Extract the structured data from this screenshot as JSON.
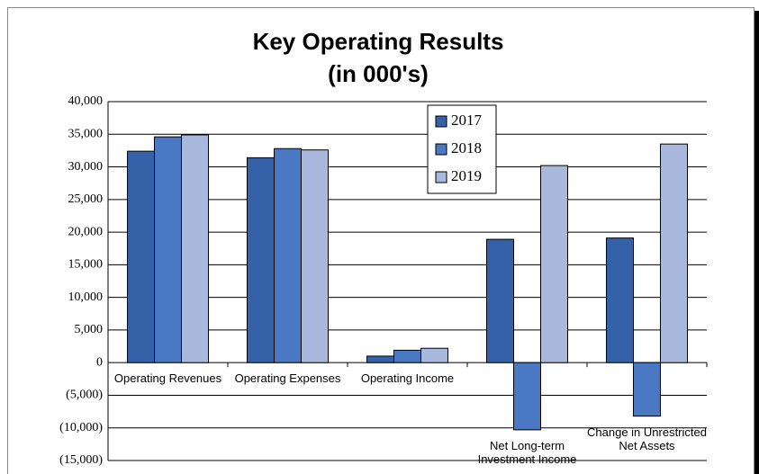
{
  "chart_data": {
    "type": "bar",
    "title": "Key Operating Results",
    "subtitle": "(in 000's)",
    "categories": [
      "Operating Revenues",
      "Operating Expenses",
      "Operating Income",
      "Net Long-term Investment Income",
      "Change in Unrestricted Net Assets"
    ],
    "series": [
      {
        "name": "2017",
        "color": "#3461a8",
        "values": [
          32400,
          31400,
          1000,
          18900,
          19100
        ]
      },
      {
        "name": "2018",
        "color": "#4a78c2",
        "values": [
          34600,
          32800,
          1900,
          -10300,
          -8200
        ]
      },
      {
        "name": "2019",
        "color": "#a9b9de",
        "values": [
          34900,
          32600,
          2200,
          30200,
          33500
        ]
      }
    ],
    "ylim": [
      -15000,
      40000
    ],
    "yticks": [
      {
        "value": -15000,
        "label": "(15,000)"
      },
      {
        "value": -10000,
        "label": "(10,000)"
      },
      {
        "value": -5000,
        "label": "(5,000)"
      },
      0,
      {
        "value": 5000,
        "label": "5,000"
      },
      {
        "value": 10000,
        "label": "10,000"
      },
      {
        "value": 15000,
        "label": "15,000"
      },
      {
        "value": 20000,
        "label": "20,000"
      },
      {
        "value": 25000,
        "label": "25,000"
      },
      {
        "value": 30000,
        "label": "30,000"
      },
      {
        "value": 35000,
        "label": "35,000"
      },
      {
        "value": 40000,
        "label": "40,000"
      }
    ],
    "grid": true,
    "legend": "top-center"
  }
}
